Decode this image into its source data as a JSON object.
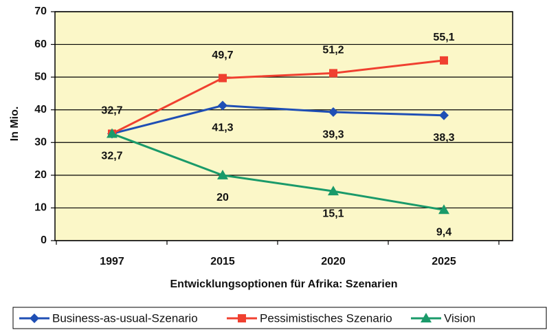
{
  "chart_data": {
    "type": "line",
    "x_label": "Entwicklungsoptionen für Afrika: Szenarien",
    "y_label": "In Mio.",
    "categories": [
      "1997",
      "2015",
      "2020",
      "2025"
    ],
    "series": [
      {
        "name": "Business-as-usual-Szenario",
        "color": "#1f4fb5",
        "marker": "diamond",
        "values": [
          32.7,
          41.3,
          39.3,
          38.3
        ],
        "value_labels": [
          null,
          "41,3",
          "39,3",
          "38,3"
        ],
        "label_position": "below"
      },
      {
        "name": "Pessimistisches Szenario",
        "color": "#f04030",
        "marker": "square",
        "values": [
          32.7,
          49.7,
          51.2,
          55.1
        ],
        "value_labels": [
          "32,7",
          "49,7",
          "51,2",
          "55,1"
        ],
        "label_position": "above"
      },
      {
        "name": "Vision",
        "color": "#1a9a6a",
        "marker": "triangle",
        "values": [
          32.7,
          20,
          15.1,
          9.4
        ],
        "value_labels": [
          "32,7",
          "20",
          "15,1",
          "9,4"
        ],
        "label_position": "below"
      }
    ],
    "ylim": [
      0,
      70
    ],
    "yticks": [
      0,
      10,
      20,
      30,
      40,
      50,
      60,
      70
    ],
    "grid": true,
    "legend": "bottom"
  }
}
